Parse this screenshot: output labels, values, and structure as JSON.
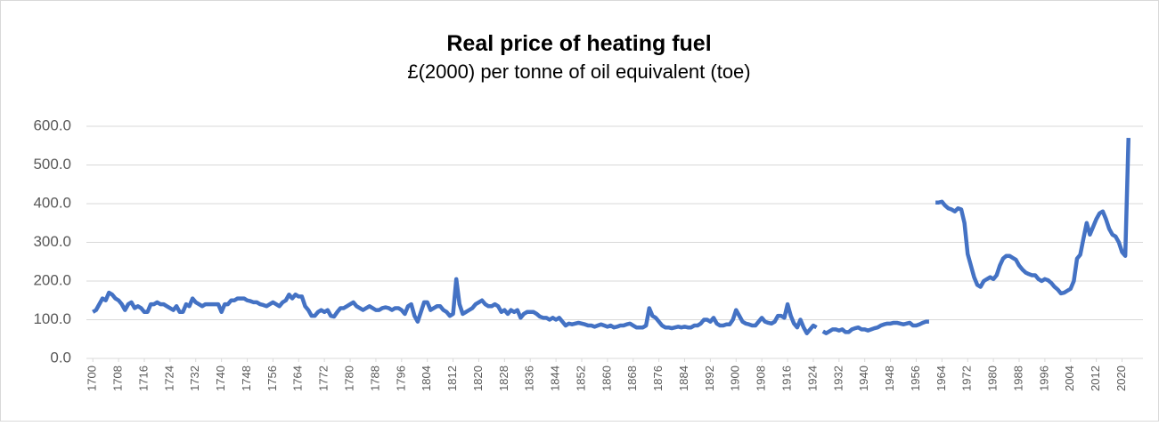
{
  "chart_data": {
    "type": "line",
    "title": "Real price of heating fuel",
    "subtitle": "£(2000) per tonne of oil equivalent (toe)",
    "x": [
      1700,
      1701,
      1702,
      1703,
      1704,
      1705,
      1706,
      1707,
      1708,
      1709,
      1710,
      1711,
      1712,
      1713,
      1714,
      1715,
      1716,
      1717,
      1718,
      1719,
      1720,
      1721,
      1722,
      1723,
      1724,
      1725,
      1726,
      1727,
      1728,
      1729,
      1730,
      1731,
      1732,
      1733,
      1734,
      1735,
      1736,
      1737,
      1738,
      1739,
      1740,
      1741,
      1742,
      1743,
      1744,
      1745,
      1746,
      1747,
      1748,
      1749,
      1750,
      1751,
      1752,
      1753,
      1754,
      1755,
      1756,
      1757,
      1758,
      1759,
      1760,
      1761,
      1762,
      1763,
      1764,
      1765,
      1766,
      1767,
      1768,
      1769,
      1770,
      1771,
      1772,
      1773,
      1774,
      1775,
      1776,
      1777,
      1778,
      1779,
      1780,
      1781,
      1782,
      1783,
      1784,
      1785,
      1786,
      1787,
      1788,
      1789,
      1790,
      1791,
      1792,
      1793,
      1794,
      1795,
      1796,
      1797,
      1798,
      1799,
      1800,
      1801,
      1802,
      1803,
      1804,
      1805,
      1806,
      1807,
      1808,
      1809,
      1810,
      1811,
      1812,
      1813,
      1814,
      1815,
      1816,
      1817,
      1818,
      1819,
      1820,
      1821,
      1822,
      1823,
      1824,
      1825,
      1826,
      1827,
      1828,
      1829,
      1830,
      1831,
      1832,
      1833,
      1834,
      1835,
      1836,
      1837,
      1838,
      1839,
      1840,
      1841,
      1842,
      1843,
      1844,
      1845,
      1846,
      1847,
      1848,
      1849,
      1850,
      1851,
      1852,
      1853,
      1854,
      1855,
      1856,
      1857,
      1858,
      1859,
      1860,
      1861,
      1862,
      1863,
      1864,
      1865,
      1866,
      1867,
      1868,
      1869,
      1870,
      1871,
      1872,
      1873,
      1874,
      1875,
      1876,
      1877,
      1878,
      1879,
      1880,
      1881,
      1882,
      1883,
      1884,
      1885,
      1886,
      1887,
      1888,
      1889,
      1890,
      1891,
      1892,
      1893,
      1894,
      1895,
      1896,
      1897,
      1898,
      1899,
      1900,
      1901,
      1902,
      1903,
      1904,
      1905,
      1906,
      1907,
      1908,
      1909,
      1910,
      1911,
      1912,
      1913,
      1914,
      1915,
      1916,
      1917,
      1918,
      1919,
      1920,
      1921,
      1922,
      1923,
      1924,
      1925,
      1926,
      1927,
      1928,
      1929,
      1930,
      1931,
      1932,
      1933,
      1934,
      1935,
      1936,
      1937,
      1938,
      1939,
      1940,
      1941,
      1942,
      1943,
      1944,
      1945,
      1946,
      1947,
      1948,
      1949,
      1950,
      1951,
      1952,
      1953,
      1954,
      1955,
      1956,
      1957,
      1958,
      1959,
      1960,
      1961,
      1962,
      1963,
      1964,
      1965,
      1966,
      1967,
      1968,
      1969,
      1970,
      1971,
      1972,
      1973,
      1974,
      1975,
      1976,
      1977,
      1978,
      1979,
      1980,
      1981,
      1982,
      1983,
      1984,
      1985,
      1986,
      1987,
      1988,
      1989,
      1990,
      1991,
      1992,
      1993,
      1994,
      1995,
      1996,
      1997,
      1998,
      1999,
      2000,
      2001,
      2002,
      2003,
      2004,
      2005,
      2006,
      2007,
      2008,
      2009,
      2010,
      2011,
      2012,
      2013,
      2014,
      2015,
      2016,
      2017,
      2018,
      2019,
      2020,
      2021,
      2022
    ],
    "series": [
      {
        "color": "#4472c4",
        "values": [
          120,
          125,
          140,
          155,
          150,
          170,
          165,
          155,
          150,
          140,
          125,
          140,
          145,
          130,
          135,
          130,
          120,
          120,
          140,
          140,
          145,
          140,
          140,
          135,
          130,
          125,
          135,
          120,
          120,
          140,
          135,
          155,
          145,
          140,
          135,
          140,
          140,
          140,
          140,
          140,
          120,
          140,
          140,
          150,
          150,
          155,
          155,
          155,
          150,
          148,
          145,
          145,
          140,
          138,
          135,
          140,
          145,
          140,
          135,
          145,
          150,
          165,
          155,
          165,
          160,
          160,
          135,
          125,
          110,
          110,
          120,
          125,
          120,
          125,
          110,
          108,
          120,
          130,
          130,
          135,
          140,
          145,
          135,
          130,
          125,
          130,
          135,
          130,
          125,
          125,
          130,
          132,
          130,
          125,
          130,
          130,
          125,
          115,
          135,
          140,
          110,
          95,
          120,
          145,
          145,
          125,
          130,
          135,
          135,
          125,
          120,
          110,
          115,
          205,
          140,
          115,
          120,
          125,
          130,
          140,
          145,
          150,
          140,
          135,
          135,
          140,
          135,
          120,
          125,
          115,
          125,
          120,
          125,
          105,
          115,
          120,
          120,
          120,
          115,
          108,
          105,
          105,
          100,
          105,
          100,
          105,
          95,
          85,
          90,
          88,
          90,
          92,
          90,
          88,
          85,
          85,
          82,
          85,
          88,
          85,
          82,
          85,
          80,
          82,
          85,
          85,
          88,
          90,
          85,
          80,
          80,
          80,
          85,
          130,
          110,
          105,
          95,
          85,
          80,
          80,
          78,
          80,
          82,
          80,
          82,
          80,
          80,
          85,
          85,
          90,
          100,
          100,
          95,
          105,
          90,
          85,
          85,
          88,
          88,
          100,
          125,
          110,
          95,
          90,
          88,
          85,
          85,
          95,
          105,
          95,
          92,
          90,
          95,
          110,
          110,
          105,
          140,
          110,
          90,
          80,
          100,
          80,
          65,
          75,
          85,
          80,
          null,
          70,
          65,
          70,
          75,
          75,
          72,
          75,
          68,
          68,
          75,
          78,
          80,
          75,
          75,
          72,
          75,
          78,
          80,
          85,
          88,
          90,
          90,
          92,
          92,
          90,
          88,
          90,
          92,
          85,
          85,
          88,
          92,
          95,
          95,
          null,
          403,
          403,
          405,
          395,
          388,
          385,
          380,
          388,
          385,
          350,
          270,
          240,
          210,
          190,
          185,
          200,
          205,
          210,
          205,
          215,
          240,
          258,
          265,
          265,
          260,
          255,
          240,
          230,
          222,
          218,
          215,
          215,
          205,
          200,
          205,
          202,
          195,
          185,
          178,
          168,
          170,
          175,
          180,
          200,
          258,
          268,
          310,
          350,
          320,
          340,
          360,
          375,
          380,
          360,
          335,
          320,
          315,
          300,
          275,
          265,
          570
        ]
      }
    ],
    "xlim": [
      1698,
      2026.5
    ],
    "xticks": [
      1700,
      1708,
      1716,
      1724,
      1732,
      1740,
      1748,
      1756,
      1764,
      1772,
      1780,
      1788,
      1796,
      1804,
      1812,
      1820,
      1828,
      1836,
      1844,
      1852,
      1860,
      1868,
      1876,
      1884,
      1892,
      1900,
      1908,
      1916,
      1924,
      1932,
      1940,
      1948,
      1956,
      1964,
      1972,
      1980,
      1988,
      1996,
      2004,
      2012,
      2020
    ],
    "ylim": [
      0,
      600
    ],
    "yticks": [
      {
        "value": 0,
        "label": "0.0"
      },
      {
        "value": 100,
        "label": "100.0"
      },
      {
        "value": 200,
        "label": "200.0"
      },
      {
        "value": 300,
        "label": "300.0"
      },
      {
        "value": 400,
        "label": "400.0"
      },
      {
        "value": 500,
        "label": "500.0"
      },
      {
        "value": 600,
        "label": "600.0"
      }
    ],
    "grid": true
  }
}
